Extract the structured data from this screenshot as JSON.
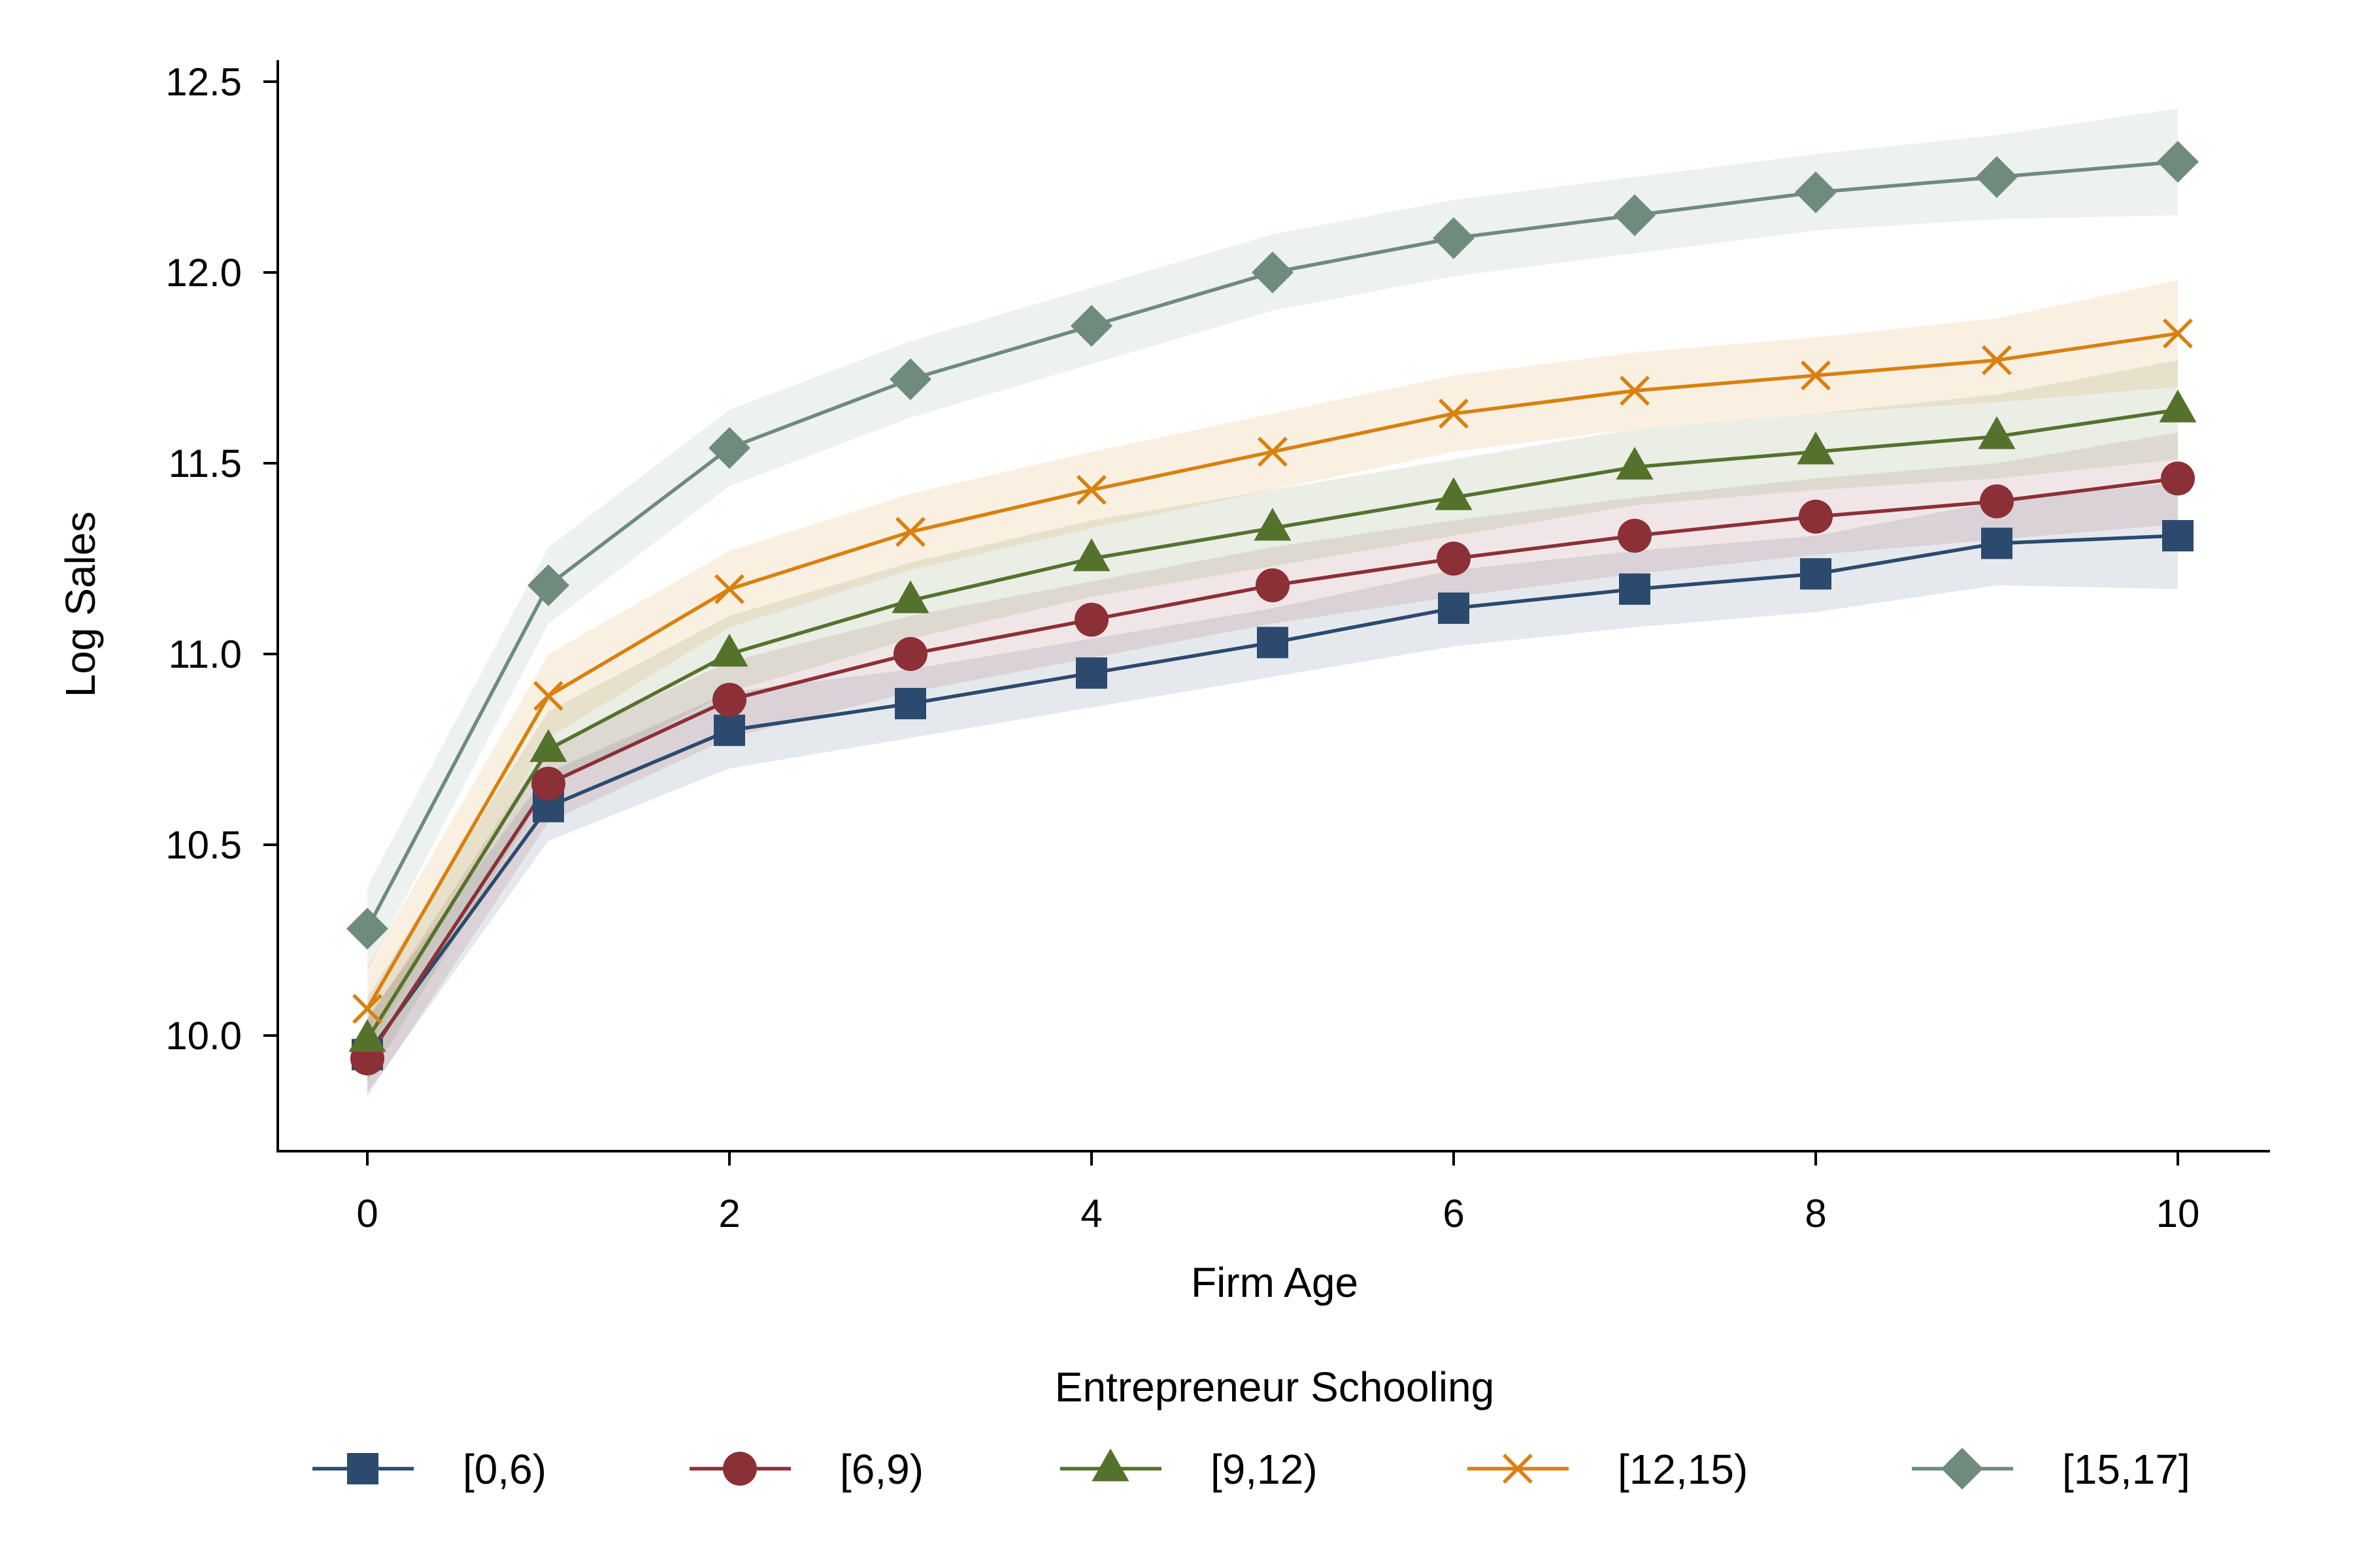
{
  "chart_data": {
    "type": "line",
    "xlabel": "Firm Age",
    "ylabel": "Log Sales",
    "x": [
      0,
      1,
      2,
      3,
      4,
      5,
      6,
      7,
      8,
      9,
      10
    ],
    "xlim": [
      -0.5,
      10.5
    ],
    "ylim": [
      9.7,
      12.56
    ],
    "xticks": [
      0,
      2,
      4,
      6,
      8,
      10
    ],
    "xtick_labels": [
      "0",
      "2",
      "4",
      "6",
      "8",
      "10"
    ],
    "yticks": [
      10.0,
      10.5,
      11.0,
      11.5,
      12.0,
      12.5
    ],
    "ytick_labels": [
      "10.0",
      "10.5",
      "11.0",
      "11.5",
      "12.0",
      "12.5"
    ],
    "grid": false,
    "legend": {
      "title": "Entrepreneur Schooling",
      "placement": "bottom"
    },
    "series": [
      {
        "name": "[0,6)",
        "color": "#2b4a6e",
        "marker": "square",
        "values": [
          9.95,
          10.6,
          10.8,
          10.87,
          10.95,
          11.03,
          11.12,
          11.17,
          11.21,
          11.29,
          11.31
        ],
        "lower": [
          9.85,
          10.51,
          10.7,
          10.78,
          10.86,
          10.94,
          11.02,
          11.07,
          11.11,
          11.18,
          11.17
        ],
        "upper": [
          10.05,
          10.69,
          10.9,
          10.96,
          11.04,
          11.12,
          11.22,
          11.27,
          11.31,
          11.4,
          11.45
        ]
      },
      {
        "name": "[6,9)",
        "color": "#8b3036",
        "marker": "circle",
        "values": [
          9.94,
          10.66,
          10.88,
          11.0,
          11.09,
          11.18,
          11.25,
          11.31,
          11.36,
          11.4,
          11.46
        ],
        "lower": [
          9.84,
          10.56,
          10.78,
          10.9,
          10.99,
          11.08,
          11.15,
          11.21,
          11.26,
          11.3,
          11.34
        ],
        "upper": [
          10.04,
          10.76,
          10.98,
          11.1,
          11.19,
          11.28,
          11.35,
          11.41,
          11.46,
          11.5,
          11.58
        ]
      },
      {
        "name": "[9,12)",
        "color": "#55722d",
        "marker": "triangle",
        "values": [
          9.99,
          10.75,
          11.0,
          11.14,
          11.25,
          11.33,
          11.41,
          11.49,
          11.53,
          11.57,
          11.64
        ],
        "lower": [
          9.88,
          10.65,
          10.9,
          11.04,
          11.15,
          11.23,
          11.31,
          11.39,
          11.43,
          11.46,
          11.51
        ],
        "upper": [
          10.1,
          10.85,
          11.1,
          11.24,
          11.35,
          11.43,
          11.51,
          11.59,
          11.63,
          11.68,
          11.77
        ]
      },
      {
        "name": "[12,15)",
        "color": "#d9800f",
        "marker": "x",
        "values": [
          10.07,
          10.89,
          11.17,
          11.32,
          11.43,
          11.53,
          11.63,
          11.69,
          11.73,
          11.77,
          11.84
        ],
        "lower": [
          9.96,
          10.78,
          11.07,
          11.22,
          11.33,
          11.43,
          11.53,
          11.59,
          11.63,
          11.66,
          11.7
        ],
        "upper": [
          10.18,
          11.0,
          11.27,
          11.42,
          11.53,
          11.63,
          11.73,
          11.79,
          11.83,
          11.88,
          11.98
        ]
      },
      {
        "name": "[15,17]",
        "color": "#6e8b7d",
        "marker": "diamond",
        "values": [
          10.28,
          11.18,
          11.54,
          11.72,
          11.86,
          12.0,
          12.09,
          12.15,
          12.21,
          12.25,
          12.29
        ],
        "lower": [
          10.17,
          11.08,
          11.44,
          11.62,
          11.76,
          11.9,
          11.99,
          12.05,
          12.11,
          12.14,
          12.15
        ],
        "upper": [
          10.39,
          11.28,
          11.64,
          11.82,
          11.96,
          12.1,
          12.19,
          12.25,
          12.31,
          12.36,
          12.43
        ]
      }
    ]
  }
}
